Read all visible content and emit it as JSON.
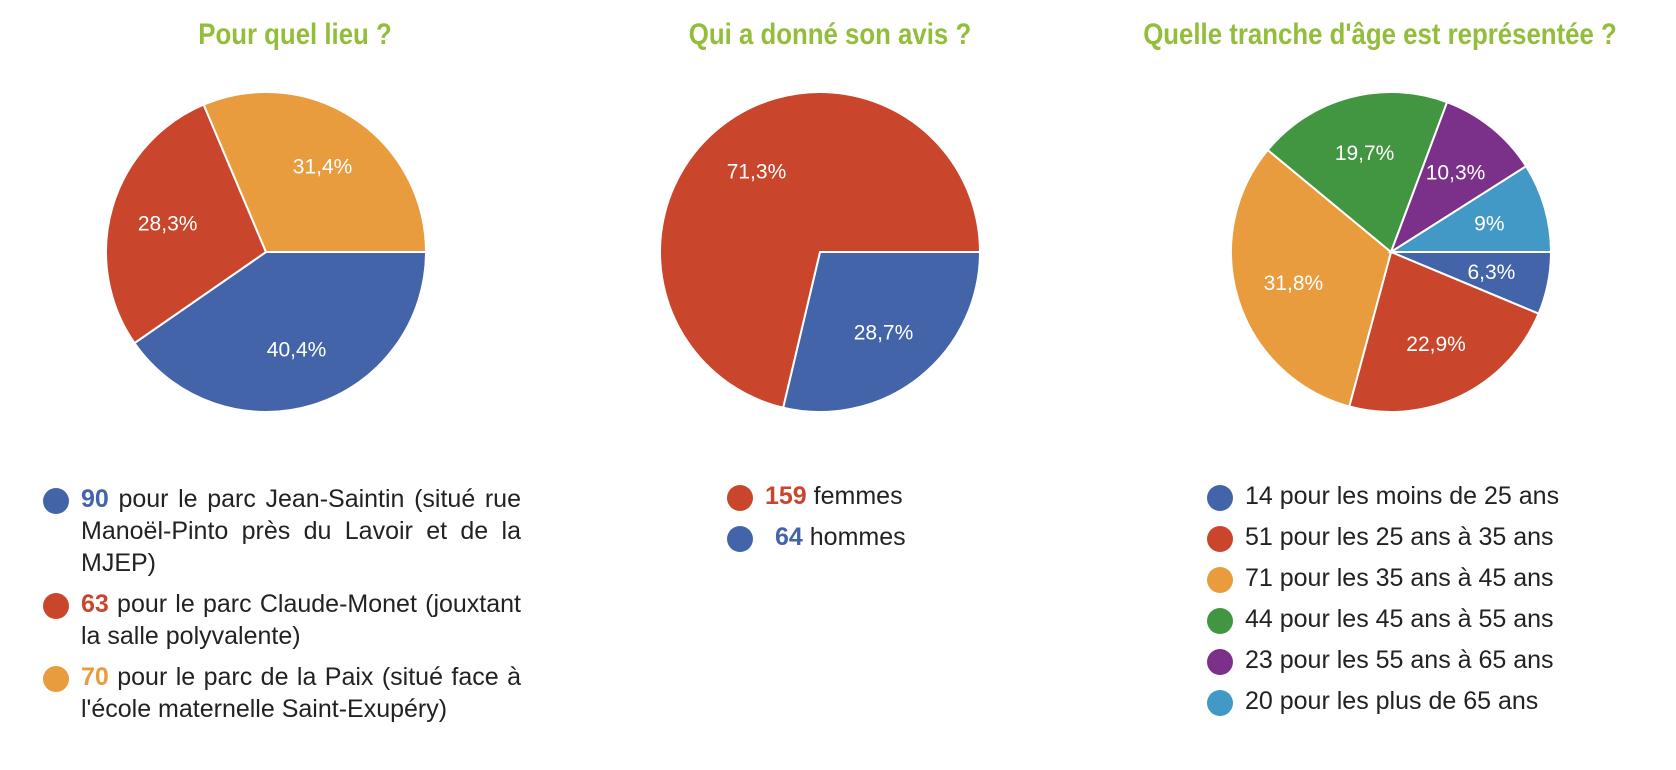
{
  "chart_data": [
    {
      "type": "pie",
      "title": "Pour quel lieu ?",
      "categories": [
        "Parc Jean-Saintin",
        "Parc Claude-Monet",
        "Parc de la Paix"
      ],
      "values": [
        40.4,
        28.3,
        31.4
      ],
      "slice_labels": [
        "40,4%",
        "28,3%",
        "31,4%"
      ],
      "colors": [
        "#4364a8",
        "#c9462c",
        "#e89c3e"
      ],
      "legend": [
        {
          "num": "90",
          "text": "pour le parc Jean-Saintin (situé rue Manoël-Pinto près du Lavoir et de la MJEP)",
          "color": "#4364a8"
        },
        {
          "num": "63",
          "text": "pour le parc Claude-Monet (jouxtant la salle polyvalente)",
          "color": "#c9462c"
        },
        {
          "num": "70",
          "text": "pour le parc de la Paix (situé face à l'école maternelle Saint-Exupéry)",
          "color": "#e89c3e"
        }
      ]
    },
    {
      "type": "pie",
      "title": "Qui a donné son avis ?",
      "categories": [
        "hommes",
        "femmes"
      ],
      "values": [
        28.7,
        71.3
      ],
      "slice_labels": [
        "28,7%",
        "71,3%"
      ],
      "colors": [
        "#4364a8",
        "#c9462c"
      ],
      "legend": [
        {
          "num": "159",
          "text": "femmes",
          "color": "#c9462c"
        },
        {
          "num": "64",
          "text": "hommes",
          "color": "#4364a8"
        }
      ]
    },
    {
      "type": "pie",
      "title": "Quelle tranche d'âge est représentée ?",
      "categories": [
        "moins de 25 ans",
        "25 à 35 ans",
        "35 à 45 ans",
        "45 à 55 ans",
        "55 à 65 ans",
        "plus de 65 ans"
      ],
      "values": [
        6.3,
        22.9,
        31.8,
        19.7,
        10.3,
        9
      ],
      "slice_labels": [
        "6,3%",
        "22,9%",
        "31,8%",
        "19,7%",
        "10,3%",
        "9%"
      ],
      "colors": [
        "#4364a8",
        "#c9462c",
        "#e89c3e",
        "#439641",
        "#7b3189",
        "#4399c6"
      ],
      "legend": [
        {
          "text": "14 pour les moins de 25 ans",
          "color": "#4364a8"
        },
        {
          "text": "51 pour les 25 ans à 35 ans",
          "color": "#c9462c"
        },
        {
          "text": "71 pour les 35 ans à 45 ans",
          "color": "#e89c3e"
        },
        {
          "text": "44 pour les 45 ans à 55 ans",
          "color": "#439641"
        },
        {
          "text": "23 pour les 55 ans à 65 ans",
          "color": "#7b3189"
        },
        {
          "text": "20 pour les plus de 65 ans",
          "color": "#4399c6"
        }
      ]
    }
  ]
}
